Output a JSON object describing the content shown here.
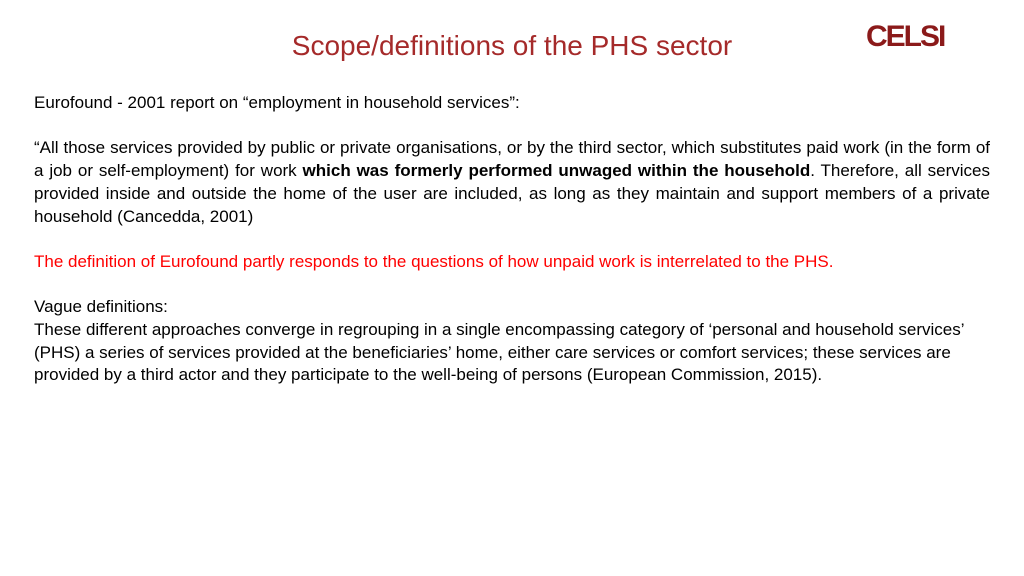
{
  "logo": {
    "text": "CELSI",
    "color": "#8b1a1a",
    "font_size": 30,
    "font_weight": 700,
    "letter_spacing": -2
  },
  "title": {
    "text": "Scope/definitions of the PHS sector",
    "color": "#a52a2a",
    "font_size": 28
  },
  "colors": {
    "background": "#ffffff",
    "body_text": "#000000",
    "highlight": "#ff0000",
    "title": "#a52a2a"
  },
  "typography": {
    "body_font_size": 17,
    "line_height": 1.35,
    "font_family": "Arial"
  },
  "paragraphs": {
    "intro": "Eurofound - 2001 report on “employment in household services”:",
    "def_pre": "“All those services provided by public or private organisations, or by the third sector, which substitutes paid work (in the form of a job or self-employment) for work ",
    "def_bold": "which was formerly performed unwaged within the household",
    "def_post": ". Therefore, all services provided inside and outside the home of the user are included, as long as they maintain and support members of a private household (Cancedda, 2001)",
    "highlight": "The definition of Eurofound partly responds to the questions of how unpaid work is interrelated to the PHS.",
    "vague_label": "Vague definitions:",
    "vague_text": "These different approaches converge in regrouping in a single encompassing category of ‘personal and household services’ (PHS) a series of services provided at the beneficiaries’ home, either care services or comfort services; these services are provided by a third actor and they participate to the well-being of persons (European Commission, 2015)."
  }
}
